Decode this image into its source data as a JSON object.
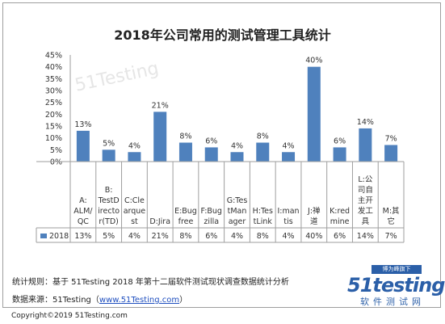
{
  "chart_data": {
    "type": "bar",
    "title": "2018年公司常用的测试管理工具统计",
    "categories": [
      "A:ALM/QC",
      "B:TestDirector(TD)",
      "C:Clearquest",
      "D:Jira",
      "E:Bugfree",
      "F:Bugzilla",
      "G:TestManager",
      "H:TestLink",
      "I:mantis",
      "J:禅道",
      "K:redmine",
      "L:公司自主开发工具",
      "M:其它"
    ],
    "category_lines": [
      [
        "A:",
        "ALM/",
        "QC"
      ],
      [
        "B:",
        "TestD",
        "irecto",
        "r(TD)"
      ],
      [
        "C:Cle",
        "arque",
        "st"
      ],
      [
        "D:Jira"
      ],
      [
        "E:Bug",
        "free"
      ],
      [
        "F:Bug",
        "zilla"
      ],
      [
        "G:Tes",
        "tMan",
        "ager"
      ],
      [
        "H:Tes",
        "tLink"
      ],
      [
        "I:man",
        "tis"
      ],
      [
        "J:禅",
        "道"
      ],
      [
        "K:red",
        "mine"
      ],
      [
        "L:公",
        "司自",
        "主开",
        "发工",
        "具"
      ],
      [
        "M:其",
        "它"
      ]
    ],
    "series": [
      {
        "name": "2018",
        "values": [
          13,
          5,
          4,
          21,
          8,
          6,
          4,
          8,
          4,
          40,
          6,
          14,
          7
        ]
      }
    ],
    "value_labels": [
      "13%",
      "5%",
      "4%",
      "21%",
      "8%",
      "6%",
      "4%",
      "8%",
      "4%",
      "40%",
      "6%",
      "14%",
      "7%"
    ],
    "y_ticks": [
      "0%",
      "5%",
      "10%",
      "15%",
      "20%",
      "25%",
      "30%",
      "35%",
      "40%",
      "45%"
    ],
    "ylim": [
      0,
      45
    ],
    "y_unit": "%",
    "grid": false,
    "legend": "bottom-left-table",
    "bar_color": "#4f81bd"
  },
  "footer": {
    "rule": "统计规则：基于 51Testing 2018 年第十二届软件测试现状调查数据统计分析",
    "source_prefix": "数据来源：51Testing（",
    "source_url": "www.51Testing.com",
    "source_suffix": "）",
    "copyright": "Copyright©2019 51Testing.com"
  },
  "logo": {
    "banner": "博为峰旗下",
    "word": "51testing",
    "subtitle": "软件测试网"
  },
  "watermark": "51Testing"
}
